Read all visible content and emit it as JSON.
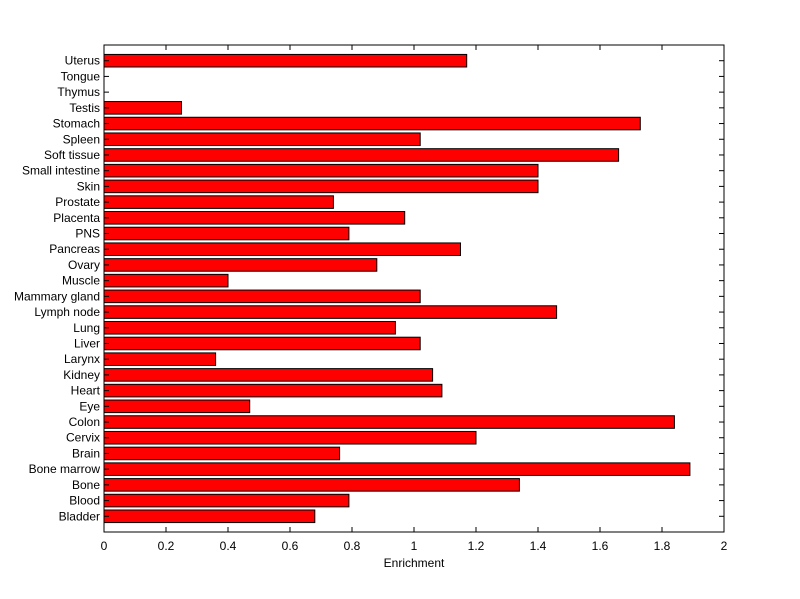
{
  "chart_data": {
    "type": "bar",
    "orientation": "horizontal",
    "title": "",
    "xlabel": "Enrichment",
    "ylabel": "",
    "xlim": [
      0,
      2
    ],
    "x_ticks": [
      "0",
      "0.2",
      "0.4",
      "0.6",
      "0.8",
      "1",
      "1.2",
      "1.4",
      "1.6",
      "1.8",
      "2"
    ],
    "grid": false,
    "legend": "none",
    "bar_color": "#ff0000",
    "bar_edge_color": "#000000",
    "categories": [
      "Bladder",
      "Blood",
      "Bone",
      "Bone marrow",
      "Brain",
      "Cervix",
      "Colon",
      "Eye",
      "Heart",
      "Kidney",
      "Larynx",
      "Liver",
      "Lung",
      "Lymph node",
      "Mammary gland",
      "Muscle",
      "Ovary",
      "Pancreas",
      "PNS",
      "Placenta",
      "Prostate",
      "Skin",
      "Small intestine",
      "Soft tissue",
      "Spleen",
      "Stomach",
      "Testis",
      "Thymus",
      "Tongue",
      "Uterus"
    ],
    "values": [
      0.68,
      0.79,
      1.34,
      1.89,
      0.76,
      1.2,
      1.84,
      0.47,
      1.09,
      1.06,
      0.36,
      1.02,
      0.94,
      1.46,
      1.02,
      0.4,
      0.88,
      1.15,
      0.79,
      0.97,
      0.74,
      1.4,
      1.4,
      1.66,
      1.02,
      1.73,
      0.25,
      0,
      0,
      1.17
    ]
  }
}
